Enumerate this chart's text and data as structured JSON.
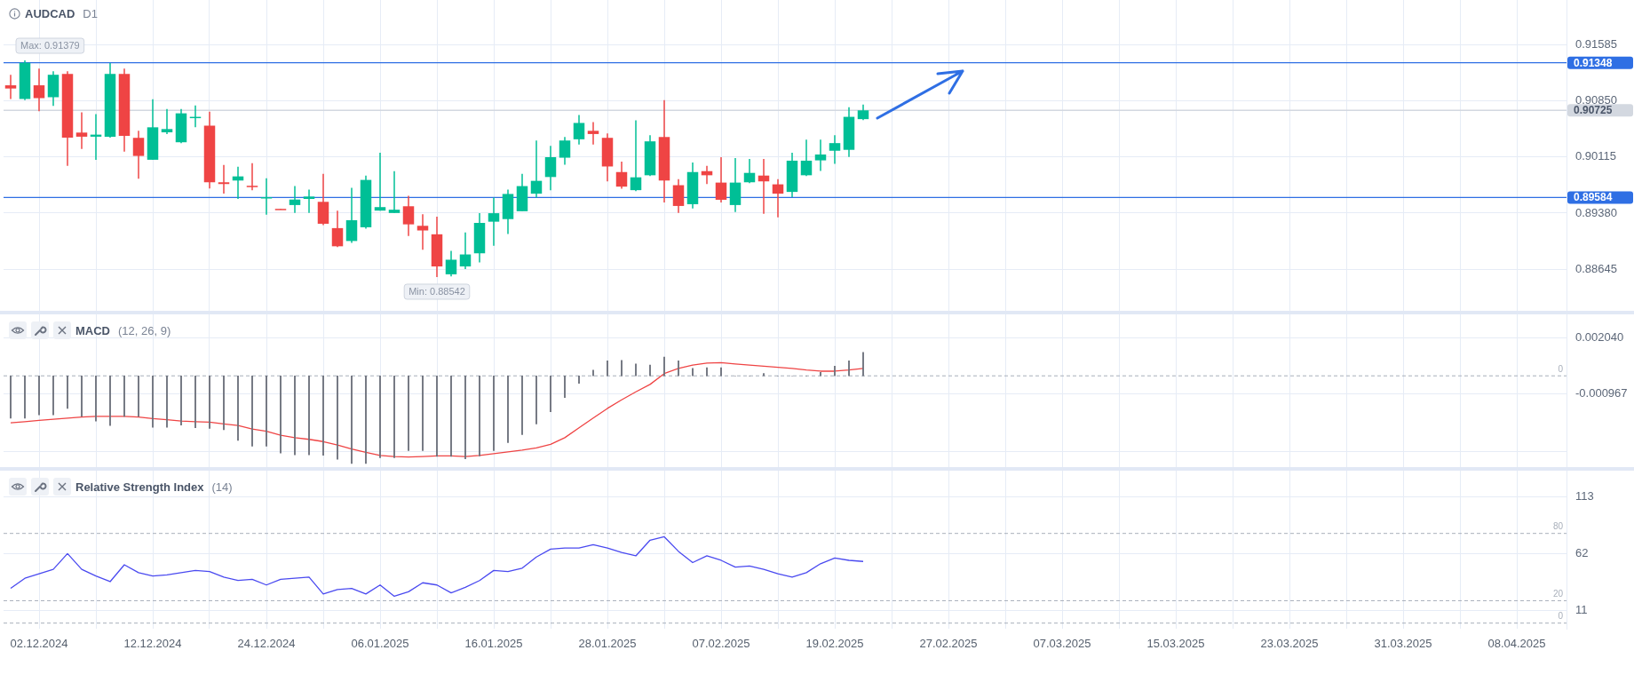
{
  "chart_data": [
    {
      "type": "candlestick",
      "title": "AUDCAD",
      "subtitle": "D1",
      "categories": [
        null,
        null,
        "02.12.2024",
        null,
        null,
        null,
        null,
        null,
        null,
        null,
        "12.12.2024",
        null,
        null,
        null,
        null,
        null,
        null,
        null,
        "24.12.2024",
        null,
        null,
        null,
        null,
        null,
        null,
        null,
        "06.01.2025",
        null,
        null,
        null,
        null,
        null,
        null,
        null,
        "16.01.2025",
        null,
        null,
        null,
        null,
        null,
        null,
        null,
        "28.01.2025",
        null,
        null,
        null,
        null,
        null,
        null,
        null,
        "07.02.2025",
        null,
        null,
        null,
        null,
        null,
        null,
        null,
        "19.02.2025",
        null,
        null,
        null,
        null,
        null,
        null,
        null,
        "27.02.2025",
        null,
        null,
        null,
        null,
        null,
        null,
        null,
        "07.03.2025",
        null,
        null,
        null,
        null,
        null,
        null,
        null,
        "15.03.2025",
        null,
        null,
        null,
        null,
        null,
        null,
        null,
        "23.03.2025",
        null,
        null,
        null,
        null,
        null,
        null,
        null,
        "31.03.2025",
        null,
        null,
        null,
        null,
        null,
        null,
        null,
        "08.04.2025",
        null,
        null,
        null
      ],
      "ohlc": [
        [
          0.91053,
          0.91191,
          0.90874,
          0.91011
        ],
        [
          0.90874,
          0.91379,
          0.90858,
          0.91348
        ],
        [
          0.91053,
          0.91272,
          0.90713,
          0.90885
        ],
        [
          0.90897,
          0.91237,
          0.90782,
          0.91191
        ],
        [
          0.91203,
          0.91237,
          0.89997,
          0.90369
        ],
        [
          0.90434,
          0.90698,
          0.90219,
          0.9038
        ],
        [
          0.9038,
          0.90675,
          0.90078,
          0.90407
        ],
        [
          0.9038,
          0.91344,
          0.90369,
          0.91203
        ],
        [
          0.91203,
          0.91272,
          0.90185,
          0.90392
        ],
        [
          0.90365,
          0.90457,
          0.89829,
          0.90128
        ],
        [
          0.90078,
          0.9087,
          0.90078,
          0.90503
        ],
        [
          0.90437,
          0.90744,
          0.90415,
          0.9048
        ],
        [
          0.90307,
          0.90744,
          0.90296,
          0.90686
        ],
        [
          0.90629,
          0.90789,
          0.90503,
          0.9064
        ],
        [
          0.90525,
          0.90709,
          0.89703,
          0.89783
        ],
        [
          0.89783,
          0.90009,
          0.89634,
          0.8976
        ],
        [
          0.89806,
          0.89986,
          0.89565,
          0.8986
        ],
        [
          0.89737,
          0.90032,
          0.8968,
          0.89722
        ],
        [
          0.8958,
          0.89837,
          0.89359,
          0.89588
        ],
        [
          0.89435,
          0.89435,
          0.89427,
          0.89427
        ],
        [
          0.89485,
          0.89733,
          0.89381,
          0.89557
        ],
        [
          0.89565,
          0.89688,
          0.89381,
          0.89596
        ],
        [
          0.89527,
          0.89894,
          0.89221,
          0.8924
        ],
        [
          0.89183,
          0.89412,
          0.88934,
          0.88945
        ],
        [
          0.89014,
          0.89711,
          0.88991,
          0.89286
        ],
        [
          0.89194,
          0.89871,
          0.89175,
          0.89814
        ],
        [
          0.89412,
          0.9017,
          0.89412,
          0.89458
        ],
        [
          0.89381,
          0.89929,
          0.89381,
          0.89424
        ],
        [
          0.89469,
          0.89607,
          0.89079,
          0.89232
        ],
        [
          0.89213,
          0.89366,
          0.88899,
          0.89152
        ],
        [
          0.89102,
          0.89332,
          0.88542,
          0.88681
        ],
        [
          0.88578,
          0.88884,
          0.88551,
          0.88769
        ],
        [
          0.88681,
          0.89125,
          0.88647,
          0.88838
        ],
        [
          0.88853,
          0.89378,
          0.88735,
          0.89251
        ],
        [
          0.89267,
          0.89584,
          0.88953,
          0.89378
        ],
        [
          0.89301,
          0.89688,
          0.89106,
          0.8963
        ],
        [
          0.89404,
          0.89894,
          0.89404,
          0.89733
        ],
        [
          0.89634,
          0.9033,
          0.89584,
          0.89802
        ],
        [
          0.89852,
          0.90261,
          0.8968,
          0.90112
        ],
        [
          0.90105,
          0.90376,
          0.90013,
          0.9033
        ],
        [
          0.90346,
          0.90663,
          0.90277,
          0.9056
        ],
        [
          0.90457,
          0.90571,
          0.90277,
          0.90415
        ],
        [
          0.90365,
          0.90422,
          0.89795,
          0.8999
        ],
        [
          0.89917,
          0.90055,
          0.89699,
          0.89726
        ],
        [
          0.8968,
          0.90594,
          0.89668,
          0.89848
        ],
        [
          0.89875,
          0.90399,
          0.89864,
          0.90319
        ],
        [
          0.90376,
          0.90858,
          0.89519,
          0.89806
        ],
        [
          0.89745,
          0.89825,
          0.89381,
          0.89473
        ],
        [
          0.89496,
          0.90043,
          0.89439,
          0.89917
        ],
        [
          0.89929,
          0.89997,
          0.8976,
          0.89875
        ],
        [
          0.89779,
          0.90113,
          0.89519,
          0.89554
        ],
        [
          0.89485,
          0.90101,
          0.89393,
          0.89779
        ],
        [
          0.89783,
          0.90089,
          0.89772,
          0.89906
        ],
        [
          0.89871,
          0.90089,
          0.8937,
          0.89795
        ],
        [
          0.89756,
          0.89825,
          0.89324,
          0.89634
        ],
        [
          0.89657,
          0.9017,
          0.89588,
          0.90066
        ],
        [
          0.89875,
          0.90342,
          0.89864,
          0.90066
        ],
        [
          0.9007,
          0.90342,
          0.89932,
          0.90147
        ],
        [
          0.90196,
          0.90399,
          0.90024,
          0.90296
        ],
        [
          0.90208,
          0.90766,
          0.90116,
          0.9064
        ],
        [
          0.9061,
          0.90801,
          0.90598,
          0.90725
        ],
        null,
        null,
        null,
        null,
        null,
        null,
        null,
        null,
        null,
        null,
        null,
        null,
        null,
        null,
        null,
        null,
        null,
        null,
        null,
        null,
        null,
        null,
        null,
        null,
        null,
        null,
        null,
        null,
        null,
        null,
        null,
        null,
        null,
        null,
        null,
        null,
        null,
        null,
        null,
        null,
        null,
        null,
        null,
        null,
        null,
        null,
        null,
        null,
        null
      ],
      "colors": [
        "#ef4444",
        "#00bf96",
        "#ef4444",
        "#00bf96",
        "#ef4444",
        "#ef4444",
        "#00bf96",
        "#00bf96",
        "#ef4444",
        "#ef4444",
        "#00bf96",
        "#00bf96",
        "#00bf96",
        "#00bf96",
        "#ef4444",
        "#ef4444",
        "#00bf96",
        "#ef4444",
        "#00bf96",
        "#ef4444",
        "#00bf96",
        "#00bf96",
        "#ef4444",
        "#ef4444",
        "#00bf96",
        "#00bf96",
        "#00bf96",
        "#00bf96",
        "#ef4444",
        "#ef4444",
        "#ef4444",
        "#00bf96",
        "#00bf96",
        "#00bf96",
        "#00bf96",
        "#00bf96",
        "#00bf96",
        "#00bf96",
        "#00bf96",
        "#00bf96",
        "#00bf96",
        "#ef4444",
        "#ef4444",
        "#ef4444",
        "#00bf96",
        "#00bf96",
        "#ef4444",
        "#ef4444",
        "#00bf96",
        "#ef4444",
        "#ef4444",
        "#00bf96",
        "#00bf96",
        "#ef4444",
        "#ef4444",
        "#00bf96",
        "#00bf96",
        "#00bf96",
        "#00bf96",
        "#00bf96",
        "#00bf96",
        null,
        null,
        null,
        null,
        null,
        null,
        null,
        null,
        null,
        null,
        null,
        null,
        null,
        null,
        null,
        null,
        null,
        null,
        null,
        null,
        null,
        null,
        null,
        null,
        null,
        null,
        null,
        null,
        null,
        null,
        null,
        null,
        null,
        null,
        null,
        null,
        null,
        null,
        null,
        null,
        null,
        null,
        null,
        null,
        null,
        null,
        null,
        null,
        null
      ],
      "ylim": [
        0.881,
        0.9217
      ],
      "yticks": [
        0.91585,
        {
          "value": 0.9085,
          "label": "0.90850"
        },
        0.90115,
        {
          "value": 0.8938,
          "label": "0.89380"
        },
        0.88645
      ],
      "ref_lines": [
        {
          "axis": "y",
          "value": 0.91348,
          "label": "0.91348",
          "color": "#2f6fe4"
        },
        {
          "axis": "y",
          "value": 0.89584,
          "label": "0.89584",
          "color": "#2f6fe4"
        },
        {
          "axis": "y",
          "value": 0.90725,
          "label": "0.90725",
          "color": "#d3d8e0"
        }
      ],
      "annotations": [
        {
          "text": "Max: 0.91379",
          "y": 0.91379
        },
        {
          "text": "Min: 0.88542",
          "y": 0.88542
        }
      ],
      "tick_labels": "y",
      "grid": true
    },
    {
      "type": "bar",
      "title": "MACD",
      "subtitle": "(12, 26, 9)",
      "categories": [
        null,
        null,
        "02.12.2024",
        null,
        null,
        null,
        null,
        null,
        null,
        null,
        "12.12.2024",
        null,
        null,
        null,
        null,
        null,
        null,
        null,
        "24.12.2024",
        null,
        null,
        null,
        null,
        null,
        null,
        null,
        "06.01.2025",
        null,
        null,
        null,
        null,
        null,
        null,
        null,
        "16.01.2025",
        null,
        null,
        null,
        null,
        null,
        null,
        null,
        "28.01.2025",
        null,
        null,
        null,
        null,
        null,
        null,
        null,
        "07.02.2025",
        null,
        null,
        null,
        null,
        null,
        null,
        null,
        "19.02.2025",
        null,
        null,
        null,
        null,
        null,
        null,
        null,
        "27.02.2025",
        null,
        null,
        null,
        null,
        null,
        null,
        null,
        "07.03.2025",
        null,
        null,
        null,
        null,
        null,
        null,
        null,
        "15.03.2025",
        null,
        null,
        null,
        null,
        null,
        null,
        null,
        "23.03.2025",
        null,
        null,
        null,
        null,
        null,
        null,
        null,
        "31.03.2025",
        null,
        null,
        null,
        null,
        null,
        null,
        null,
        "08.04.2025",
        null,
        null,
        null
      ],
      "series": [
        {
          "type": "bar",
          "color": "#6d717c",
          "values": [
            -0.00227,
            -0.00227,
            -0.00209,
            -0.00209,
            -0.00175,
            -0.00218,
            -0.00243,
            -0.00267,
            -0.00218,
            -0.00218,
            -0.00276,
            -0.00276,
            -0.00264,
            -0.00279,
            -0.00282,
            -0.00289,
            -0.00347,
            -0.00378,
            -0.00378,
            -0.00414,
            -0.00424,
            -0.00424,
            -0.00427,
            -0.00448,
            -0.0047,
            -0.0047,
            -0.00439,
            -0.00439,
            -0.00402,
            -0.00402,
            -0.00433,
            -0.00433,
            -0.00445,
            -0.0043,
            -0.00402,
            -0.00359,
            -0.00316,
            -0.00258,
            -0.00193,
            -0.00117,
            -0.0004,
            0.00031,
            0.0008,
            0.00083,
            0.00064,
            0.00058,
            0.00101,
            0.0008,
            0.0004,
            0.00043,
            0.00043,
            0,
            0,
            0.00012,
            0,
            0,
            0,
            0.00018,
            0.00052,
            0.0008,
            0.00126,
            null,
            null,
            null,
            null,
            null,
            null,
            null,
            null,
            null,
            null,
            null,
            null,
            null,
            null,
            null,
            null,
            null,
            null,
            null,
            null,
            null,
            null,
            null,
            null,
            null,
            null,
            null,
            null,
            null,
            null,
            null,
            null,
            null,
            null,
            null,
            null,
            null,
            null,
            null,
            null,
            null,
            null,
            null,
            null,
            null,
            null,
            null,
            null,
            null
          ]
        },
        {
          "type": "line",
          "color": "#ef4444",
          "values": [
            -0.00252,
            -0.00246,
            -0.00239,
            -0.00233,
            -0.00227,
            -0.00221,
            -0.00218,
            -0.00218,
            -0.00218,
            -0.00221,
            -0.0023,
            -0.00236,
            -0.00243,
            -0.00246,
            -0.00249,
            -0.00258,
            -0.00267,
            -0.00286,
            -0.00298,
            -0.00319,
            -0.00332,
            -0.00341,
            -0.00353,
            -0.00371,
            -0.00393,
            -0.00411,
            -0.00427,
            -0.00433,
            -0.00436,
            -0.00433,
            -0.0043,
            -0.0043,
            -0.00433,
            -0.00427,
            -0.00418,
            -0.00408,
            -0.00399,
            -0.00387,
            -0.00368,
            -0.00332,
            -0.00279,
            -0.00227,
            -0.00175,
            -0.00129,
            -0.00086,
            -0.00046,
            0.00012,
            0.0004,
            0.00058,
            0.00068,
            0.00071,
            0.00064,
            0.00058,
            0.00052,
            0.00046,
            0.0004,
            0.00031,
            0.00025,
            0.00025,
            0.00031,
            0.0004,
            null,
            null,
            null,
            null,
            null,
            null,
            null,
            null,
            null,
            null,
            null,
            null,
            null,
            null,
            null,
            null,
            null,
            null,
            null,
            null,
            null,
            null,
            null,
            null,
            null,
            null,
            null,
            null,
            null,
            null,
            null,
            null,
            null,
            null,
            null,
            null,
            null,
            null,
            null,
            null,
            null,
            null,
            null,
            null,
            null,
            null,
            null,
            null,
            null
          ]
        }
      ],
      "ylim": [
        -0.0049,
        0.0033
      ],
      "yticks": [
        {
          "value": 0.00204,
          "label": "0.002040"
        },
        {
          "value": -0.000967,
          "label": "-0.000967"
        },
        {
          "value": -0.004074,
          "label": null
        }
      ],
      "ref_lines": [
        {
          "axis": "y",
          "value": 0,
          "label": "0",
          "color": "#a8afba",
          "line_style": "dashed"
        }
      ],
      "marker": "none",
      "tick_labels": "y",
      "grid": true
    },
    {
      "type": "line",
      "title": "Relative Strength Index",
      "subtitle": "(14)",
      "categories": [
        null,
        null,
        "02.12.2024",
        null,
        null,
        null,
        null,
        null,
        null,
        null,
        "12.12.2024",
        null,
        null,
        null,
        null,
        null,
        null,
        null,
        "24.12.2024",
        null,
        null,
        null,
        null,
        null,
        null,
        null,
        "06.01.2025",
        null,
        null,
        null,
        null,
        null,
        null,
        null,
        "16.01.2025",
        null,
        null,
        null,
        null,
        null,
        null,
        null,
        "28.01.2025",
        null,
        null,
        null,
        null,
        null,
        null,
        null,
        "07.02.2025",
        null,
        null,
        null,
        null,
        null,
        null,
        null,
        "19.02.2025",
        null,
        null,
        null,
        null,
        null,
        null,
        null,
        "27.02.2025",
        null,
        null,
        null,
        null,
        null,
        null,
        null,
        "07.03.2025",
        null,
        null,
        null,
        null,
        null,
        null,
        null,
        "15.03.2025",
        null,
        null,
        null,
        null,
        null,
        null,
        null,
        "23.03.2025",
        null,
        null,
        null,
        null,
        null,
        null,
        null,
        "31.03.2025",
        null,
        null,
        null,
        null,
        null,
        null,
        null,
        "08.04.2025",
        null,
        null,
        null
      ],
      "series": [
        {
          "color": "#4a4af0",
          "values": [
            31,
            40,
            44,
            48,
            62,
            48,
            42,
            37,
            52,
            45,
            42,
            43,
            45,
            47,
            46,
            41,
            38,
            39,
            34,
            39,
            40,
            41,
            26,
            30,
            31,
            26,
            34,
            24,
            28,
            36,
            34,
            27,
            32,
            38,
            47,
            46,
            49,
            59,
            66,
            67,
            67,
            70,
            67,
            63,
            60,
            74,
            77,
            64,
            54,
            60,
            56,
            50,
            51,
            48,
            44,
            41,
            45,
            53,
            58,
            56,
            55,
            null,
            null,
            null,
            null,
            null,
            null,
            null,
            null,
            null,
            null,
            null,
            null,
            null,
            null,
            null,
            null,
            null,
            null,
            null,
            null,
            null,
            null,
            null,
            null,
            null,
            null,
            null,
            null,
            null,
            null,
            null,
            null,
            null,
            null,
            null,
            null,
            null,
            null,
            null,
            null,
            null,
            null,
            null,
            null,
            null,
            null,
            null,
            null,
            null
          ]
        }
      ],
      "ylim": [
        -5,
        136
      ],
      "yticks": [
        113,
        62,
        11
      ],
      "ref_lines": [
        {
          "axis": "y",
          "value": 80,
          "label": "80",
          "color": "#a8afba",
          "line_style": "dashed"
        },
        {
          "axis": "y",
          "value": 20,
          "label": "20",
          "color": "#a8afba",
          "line_style": "dashed"
        },
        {
          "axis": "y",
          "value": 0,
          "label": "0",
          "color": "#a8afba",
          "line_style": "dashed"
        }
      ],
      "marker": "none",
      "grid": true
    }
  ]
}
